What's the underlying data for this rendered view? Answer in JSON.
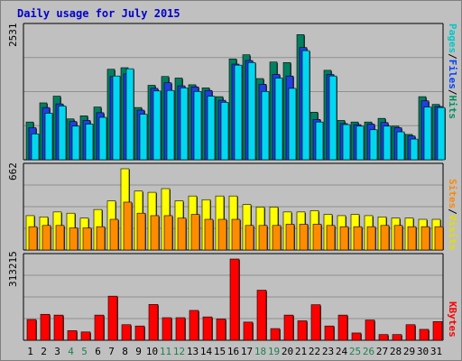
{
  "chart_data": {
    "type": "bar",
    "title": "Daily usage for July 2015",
    "categories": [
      "1",
      "2",
      "3",
      "4",
      "5",
      "6",
      "7",
      "8",
      "9",
      "10",
      "11",
      "12",
      "13",
      "14",
      "15",
      "16",
      "17",
      "18",
      "19",
      "20",
      "21",
      "22",
      "23",
      "24",
      "25",
      "26",
      "27",
      "28",
      "29",
      "30",
      "31"
    ],
    "weekend_days": [
      "4",
      "5",
      "11",
      "12",
      "18",
      "19",
      "25",
      "26"
    ],
    "panels": [
      {
        "id": "hits",
        "max_label": "2531",
        "ymax": 2531,
        "legend": [
          {
            "text": "Pages",
            "color": "#00c8c8"
          },
          {
            "text": "/",
            "color": "#000000"
          },
          {
            "text": "Files",
            "color": "#0040ff"
          },
          {
            "text": "/",
            "color": "#000000"
          },
          {
            "text": "Hits",
            "color": "#009060"
          }
        ],
        "series": [
          {
            "name": "Hits",
            "color": "#008060",
            "values": [
              730,
              1100,
              1230,
              790,
              850,
              1020,
              1750,
              1780,
              1010,
              1440,
              1610,
              1580,
              1450,
              1390,
              1220,
              1950,
              2030,
              1570,
              1890,
              1880,
              2420,
              920,
              1730,
              760,
              730,
              730,
              800,
              650,
              490,
              1220,
              1070
            ]
          },
          {
            "name": "Files",
            "color": "#2040e0",
            "values": [
              620,
              1010,
              1080,
              740,
              760,
              910,
              1610,
              1660,
              960,
              1380,
              1490,
              1430,
              1410,
              1340,
              1150,
              1850,
              1920,
              1460,
              1650,
              1620,
              2170,
              780,
              1650,
              700,
              680,
              690,
              720,
              620,
              460,
              1140,
              1030
            ]
          },
          {
            "name": "Pages",
            "color": "#00d8f0",
            "values": [
              500,
              900,
              1040,
              650,
              690,
              820,
              1620,
              1760,
              880,
              1330,
              1340,
              1390,
              1320,
              1230,
              1110,
              1830,
              1880,
              1320,
              1580,
              1380,
              2110,
              730,
              1620,
              680,
              650,
              580,
              650,
              540,
              400,
              1020,
              1010
            ]
          }
        ]
      },
      {
        "id": "visits",
        "max_label": "662",
        "ymax": 662,
        "legend": [
          {
            "text": "Sites",
            "color": "#ff8800"
          },
          {
            "text": "/",
            "color": "#000000"
          },
          {
            "text": "Visits",
            "color": "#e0e000"
          }
        ],
        "series": [
          {
            "name": "Visits",
            "color": "#ffff00",
            "values": [
              280,
              270,
              310,
              300,
              260,
              330,
              400,
              662,
              480,
              470,
              500,
              400,
              440,
              410,
              440,
              440,
              370,
              350,
              350,
              310,
              310,
              320,
              290,
              280,
              290,
              280,
              270,
              260,
              260,
              250,
              250
            ]
          },
          {
            "name": "Sites",
            "color": "#ff8c00",
            "values": [
              190,
              200,
              200,
              180,
              180,
              190,
              250,
              390,
              300,
              280,
              280,
              260,
              290,
              250,
              250,
              250,
              200,
              200,
              200,
              210,
              210,
              210,
              200,
              190,
              190,
              190,
              200,
              200,
              190,
              190,
              190
            ]
          }
        ]
      },
      {
        "id": "kbytes",
        "max_label": "313215",
        "ymax": 313215,
        "legend": [
          {
            "text": "KBytes",
            "color": "#ff0000"
          }
        ],
        "series": [
          {
            "name": "KBytes",
            "color": "#ff0000",
            "values": [
              80000,
              100000,
              97000,
              37000,
              32000,
              97000,
              170000,
              60000,
              55000,
              138000,
              87000,
              87000,
              115000,
              90000,
              82000,
              313215,
              70000,
              193000,
              45000,
              97000,
              75000,
              137000,
              55000,
              97000,
              28000,
              78000,
              22000,
              22000,
              60000,
              42000,
              72000
            ]
          }
        ]
      }
    ]
  }
}
